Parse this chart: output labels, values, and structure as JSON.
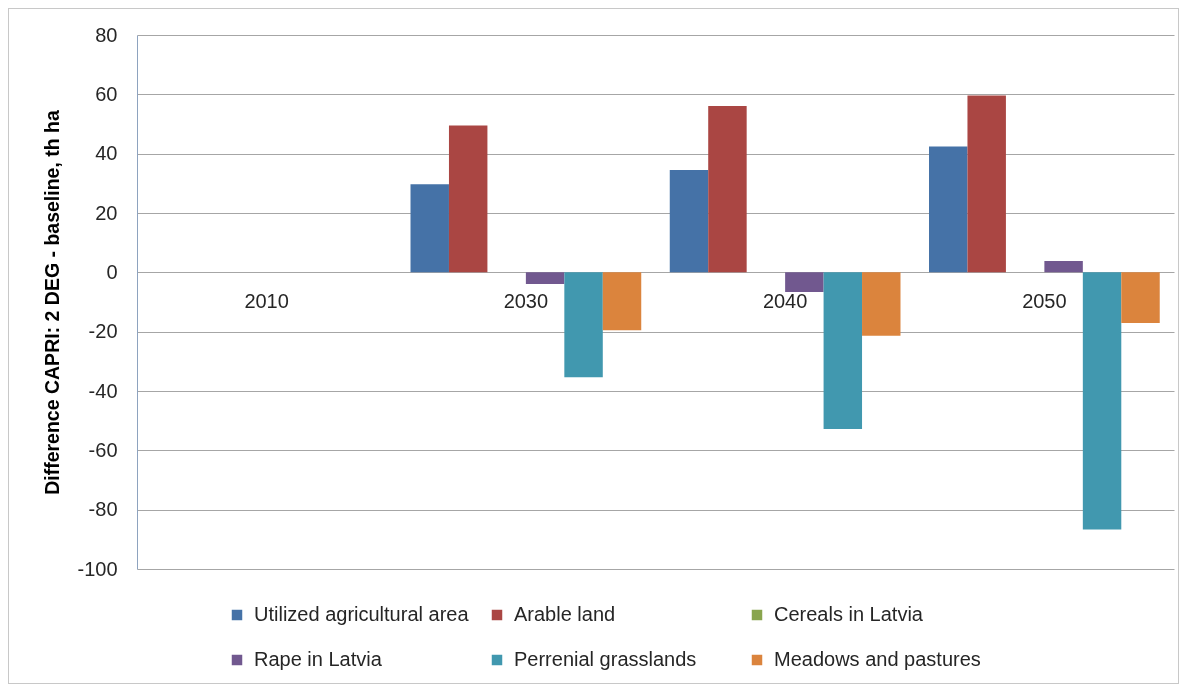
{
  "chart_data": {
    "type": "bar",
    "ylabel": "Difference CAPRI: 2 DEG - baseline, th ha",
    "categories": [
      "2010",
      "2030",
      "2040",
      "2050"
    ],
    "series": [
      {
        "name": "Utilized agricultural area",
        "color": "#4572a7",
        "values": [
          null,
          29.7,
          34.5,
          42.4
        ]
      },
      {
        "name": "Arable land",
        "color": "#aa4643",
        "values": [
          null,
          49.5,
          56.1,
          59.6
        ]
      },
      {
        "name": "Cereals in Latvia",
        "color": "#89a54e",
        "values": [
          null,
          null,
          null,
          null
        ]
      },
      {
        "name": "Rape in Latvia",
        "color": "#71588f",
        "values": [
          null,
          -3.9,
          -6.6,
          3.8
        ]
      },
      {
        "name": "Perrenial grasslands",
        "color": "#4198af",
        "values": [
          null,
          -35.4,
          -52.8,
          -86.7
        ]
      },
      {
        "name": "Meadows and pastures",
        "color": "#db843d",
        "values": [
          null,
          -19.5,
          -21.4,
          -17.1
        ]
      }
    ],
    "ylim": [
      -100,
      80
    ],
    "yticks": [
      -100,
      -80,
      -60,
      -40,
      -20,
      0,
      20,
      40,
      60,
      80
    ],
    "grid": "y",
    "legend": "bottom"
  }
}
